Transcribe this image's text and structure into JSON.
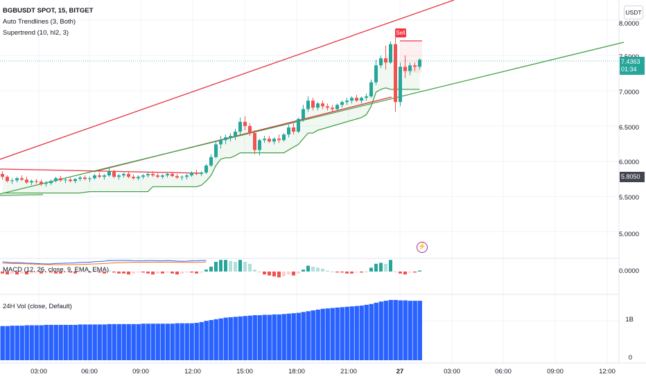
{
  "header": {
    "symbol_line": "BGBUSDT SPOT, 15, BITGET",
    "indicator_1": "Auto Trendlines (3, Both)",
    "indicator_2": "Supertrend (10, hl2, 3)"
  },
  "currency_button": "USDT",
  "price_axis": {
    "labels": [
      "8.0000",
      "7.5000",
      "7.0000",
      "6.5000",
      "6.0000",
      "5.5000",
      "5.0000"
    ],
    "last_price": "7.4363",
    "countdown": "01:34",
    "gray_tag": "5.8050"
  },
  "macd": {
    "legend": "MACD (12, 26, close, 9, EMA, EMA)",
    "axis_label": "0.0000"
  },
  "volume": {
    "legend": "24H Vol (close, Default)",
    "axis_labels": [
      "1B",
      "0"
    ]
  },
  "time_axis": [
    "03:00",
    "06:00",
    "09:00",
    "12:00",
    "15:00",
    "18:00",
    "21:00",
    "27",
    "03:00",
    "06:00",
    "09:00",
    "12:00"
  ],
  "sell_signal": "Sell",
  "alert_icon": "lightning-bolt-icon",
  "colors": {
    "up": "#26a69a",
    "down": "#ef5350",
    "supertrend": "#43a047",
    "trendline_red": "#e5303f",
    "trendline_green": "#43a047",
    "volume": "#2962ff",
    "macd_line": "#2962ff",
    "signal_line": "#ff6d00"
  },
  "chart_data": {
    "type": "candlestick",
    "price_range": [
      4.8,
      8.1
    ],
    "candles": [
      [
        5.82,
        5.86,
        5.74,
        5.78
      ],
      [
        5.78,
        5.8,
        5.7,
        5.72
      ],
      [
        5.72,
        5.76,
        5.68,
        5.73
      ],
      [
        5.73,
        5.78,
        5.7,
        5.76
      ],
      [
        5.76,
        5.8,
        5.72,
        5.74
      ],
      [
        5.74,
        5.78,
        5.68,
        5.7
      ],
      [
        5.7,
        5.74,
        5.66,
        5.72
      ],
      [
        5.72,
        5.75,
        5.68,
        5.71
      ],
      [
        5.71,
        5.74,
        5.65,
        5.68
      ],
      [
        5.68,
        5.72,
        5.64,
        5.69
      ],
      [
        5.69,
        5.74,
        5.66,
        5.72
      ],
      [
        5.72,
        5.78,
        5.7,
        5.76
      ],
      [
        5.76,
        5.79,
        5.71,
        5.73
      ],
      [
        5.73,
        5.76,
        5.69,
        5.74
      ],
      [
        5.74,
        5.77,
        5.7,
        5.72
      ],
      [
        5.72,
        5.76,
        5.69,
        5.75
      ],
      [
        5.75,
        5.79,
        5.72,
        5.77
      ],
      [
        5.77,
        5.8,
        5.73,
        5.75
      ],
      [
        5.75,
        5.78,
        5.71,
        5.76
      ],
      [
        5.76,
        5.82,
        5.74,
        5.8
      ],
      [
        5.8,
        5.84,
        5.76,
        5.78
      ],
      [
        5.78,
        5.82,
        5.74,
        5.8
      ],
      [
        5.8,
        5.9,
        5.78,
        5.86
      ],
      [
        5.86,
        5.88,
        5.76,
        5.78
      ],
      [
        5.78,
        5.82,
        5.74,
        5.8
      ],
      [
        5.8,
        5.84,
        5.77,
        5.82
      ],
      [
        5.82,
        5.85,
        5.76,
        5.78
      ],
      [
        5.78,
        5.81,
        5.74,
        5.76
      ],
      [
        5.76,
        5.8,
        5.73,
        5.78
      ],
      [
        5.78,
        5.82,
        5.75,
        5.8
      ],
      [
        5.8,
        5.84,
        5.77,
        5.82
      ],
      [
        5.82,
        5.86,
        5.78,
        5.8
      ],
      [
        5.8,
        5.83,
        5.76,
        5.78
      ],
      [
        5.78,
        5.82,
        5.75,
        5.8
      ],
      [
        5.8,
        5.84,
        5.77,
        5.82
      ],
      [
        5.82,
        5.85,
        5.78,
        5.79
      ],
      [
        5.79,
        5.82,
        5.75,
        5.77
      ],
      [
        5.77,
        5.8,
        5.73,
        5.78
      ],
      [
        5.78,
        5.82,
        5.74,
        5.8
      ],
      [
        5.8,
        5.86,
        5.78,
        5.84
      ],
      [
        5.84,
        5.88,
        5.8,
        5.82
      ],
      [
        5.82,
        5.86,
        5.79,
        5.84
      ],
      [
        5.84,
        5.96,
        5.82,
        5.94
      ],
      [
        5.94,
        6.1,
        5.92,
        6.06
      ],
      [
        6.06,
        6.28,
        6.04,
        6.24
      ],
      [
        6.24,
        6.36,
        6.18,
        6.3
      ],
      [
        6.3,
        6.38,
        6.24,
        6.34
      ],
      [
        6.34,
        6.4,
        6.28,
        6.36
      ],
      [
        6.36,
        6.46,
        6.3,
        6.42
      ],
      [
        6.42,
        6.62,
        6.38,
        6.56
      ],
      [
        6.56,
        6.64,
        6.44,
        6.5
      ],
      [
        6.5,
        6.54,
        6.36,
        6.4
      ],
      [
        6.4,
        6.44,
        6.1,
        6.16
      ],
      [
        6.16,
        6.32,
        6.08,
        6.3
      ],
      [
        6.3,
        6.36,
        6.26,
        6.32
      ],
      [
        6.32,
        6.36,
        6.26,
        6.28
      ],
      [
        6.28,
        6.34,
        6.24,
        6.32
      ],
      [
        6.32,
        6.38,
        6.26,
        6.3
      ],
      [
        6.3,
        6.4,
        6.28,
        6.38
      ],
      [
        6.38,
        6.52,
        6.34,
        6.48
      ],
      [
        6.48,
        6.54,
        6.38,
        6.42
      ],
      [
        6.42,
        6.62,
        6.4,
        6.6
      ],
      [
        6.6,
        6.8,
        6.56,
        6.74
      ],
      [
        6.74,
        6.92,
        6.7,
        6.86
      ],
      [
        6.86,
        6.9,
        6.72,
        6.76
      ],
      [
        6.76,
        6.84,
        6.72,
        6.82
      ],
      [
        6.82,
        6.86,
        6.74,
        6.78
      ],
      [
        6.78,
        6.82,
        6.72,
        6.76
      ],
      [
        6.76,
        6.8,
        6.7,
        6.74
      ],
      [
        6.74,
        6.82,
        6.72,
        6.8
      ],
      [
        6.8,
        6.86,
        6.76,
        6.84
      ],
      [
        6.84,
        6.9,
        6.8,
        6.86
      ],
      [
        6.86,
        6.92,
        6.82,
        6.9
      ],
      [
        6.9,
        6.94,
        6.84,
        6.86
      ],
      [
        6.86,
        6.92,
        6.82,
        6.9
      ],
      [
        6.9,
        6.96,
        6.86,
        6.92
      ],
      [
        6.92,
        7.16,
        6.9,
        7.12
      ],
      [
        7.12,
        7.44,
        7.08,
        7.36
      ],
      [
        7.36,
        7.5,
        7.32,
        7.46
      ],
      [
        7.46,
        7.64,
        7.3,
        7.4
      ],
      [
        7.4,
        7.7,
        7.38,
        7.66
      ],
      [
        7.66,
        7.76,
        6.7,
        6.84
      ],
      [
        6.84,
        7.4,
        6.78,
        7.34
      ],
      [
        7.34,
        7.5,
        7.18,
        7.28
      ],
      [
        7.28,
        7.4,
        7.22,
        7.36
      ],
      [
        7.36,
        7.4,
        7.28,
        7.34
      ],
      [
        7.34,
        7.46,
        7.3,
        7.44
      ]
    ],
    "supertrend": [
      5.55,
      5.55,
      5.55,
      5.55,
      5.55,
      5.55,
      5.55,
      5.55,
      5.55,
      5.55,
      5.55,
      5.55,
      5.55,
      5.55,
      5.55,
      5.55,
      5.55,
      5.56,
      5.57,
      5.57,
      5.57,
      5.57,
      5.57,
      5.57,
      5.57,
      5.57,
      5.57,
      5.57,
      5.57,
      5.57,
      5.57,
      5.64,
      5.64,
      5.64,
      5.64,
      5.64,
      5.64,
      5.64,
      5.64,
      5.64,
      5.64,
      5.66,
      5.72,
      5.8,
      5.94,
      6.03,
      6.05,
      6.05,
      6.08,
      6.12,
      6.12,
      6.12,
      6.12,
      6.12,
      6.12,
      6.12,
      6.12,
      6.12,
      6.12,
      6.16,
      6.2,
      6.24,
      6.32,
      6.4,
      6.4,
      6.44,
      6.46,
      6.48,
      6.5,
      6.52,
      6.54,
      6.56,
      6.58,
      6.6,
      6.62,
      6.66,
      6.78,
      6.98,
      7.02,
      7.04,
      7.02,
      7.02,
      7.02,
      7.02,
      7.02,
      7.02,
      7.02
    ],
    "macd_histogram": [
      -0.02,
      -0.03,
      -0.02,
      -0.03,
      -0.02,
      -0.03,
      -0.02,
      -0.01,
      -0.02,
      -0.01,
      -0.01,
      -0.02,
      -0.02,
      -0.01,
      -0.01,
      -0.02,
      -0.01,
      0.0,
      -0.01,
      0.0,
      -0.01,
      -0.02,
      0.01,
      -0.01,
      -0.02,
      -0.02,
      -0.03,
      -0.02,
      -0.01,
      -0.01,
      -0.02,
      -0.03,
      -0.02,
      -0.02,
      -0.01,
      -0.02,
      -0.03,
      -0.02,
      -0.01,
      -0.01,
      -0.02,
      -0.01,
      0.02,
      0.05,
      0.1,
      0.12,
      0.12,
      0.11,
      0.1,
      0.12,
      0.1,
      0.08,
      0.02,
      0.0,
      -0.03,
      -0.04,
      -0.05,
      -0.06,
      -0.05,
      -0.03,
      -0.04,
      -0.02,
      0.02,
      0.06,
      0.05,
      0.04,
      0.03,
      0.01,
      0.0,
      -0.01,
      -0.01,
      -0.02,
      -0.02,
      -0.01,
      -0.01,
      0.0,
      0.04,
      0.08,
      0.09,
      0.08,
      0.12,
      0.0,
      -0.02,
      -0.03,
      -0.01,
      -0.01,
      0.01
    ],
    "volume_24h": [
      0.85,
      0.85,
      0.86,
      0.86,
      0.86,
      0.87,
      0.87,
      0.87,
      0.87,
      0.88,
      0.88,
      0.88,
      0.88,
      0.88,
      0.88,
      0.88,
      0.89,
      0.89,
      0.89,
      0.89,
      0.89,
      0.89,
      0.9,
      0.9,
      0.9,
      0.9,
      0.9,
      0.9,
      0.9,
      0.91,
      0.91,
      0.91,
      0.91,
      0.91,
      0.91,
      0.91,
      0.92,
      0.92,
      0.92,
      0.92,
      0.93,
      0.95,
      0.98,
      1.0,
      1.02,
      1.04,
      1.06,
      1.07,
      1.08,
      1.09,
      1.1,
      1.11,
      1.12,
      1.12,
      1.13,
      1.13,
      1.14,
      1.14,
      1.15,
      1.16,
      1.17,
      1.18,
      1.2,
      1.22,
      1.24,
      1.26,
      1.28,
      1.29,
      1.3,
      1.31,
      1.32,
      1.33,
      1.34,
      1.35,
      1.36,
      1.38,
      1.4,
      1.43,
      1.46,
      1.48,
      1.5,
      1.5,
      1.49,
      1.49,
      1.48,
      1.48,
      1.48
    ]
  }
}
